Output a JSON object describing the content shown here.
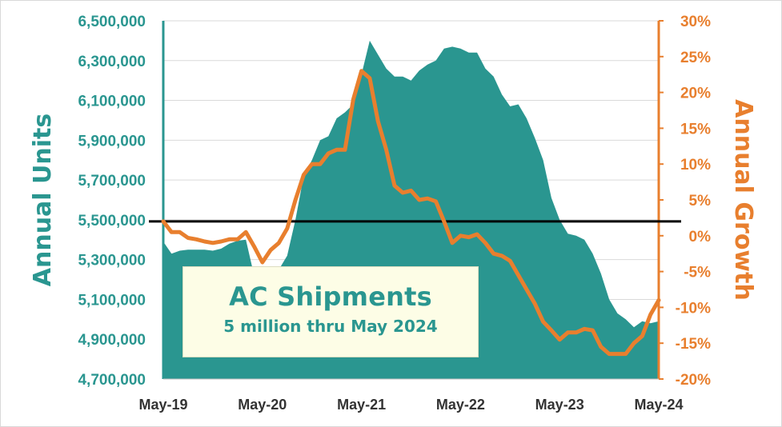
{
  "chart_data": {
    "type": "area",
    "title": "AC Shipments",
    "subtitle": "5 million thru May 2024",
    "ylabel": "Annual Units",
    "y2label": "Annual Growth",
    "ylim": [
      4700000,
      6500000
    ],
    "y2lim": [
      -20,
      30
    ],
    "yticks": [
      "6,500,000",
      "6,300,000",
      "6,100,000",
      "5,900,000",
      "5,700,000",
      "5,500,000",
      "5,300,000",
      "5,100,000",
      "4,900,000",
      "4,700,000"
    ],
    "y2ticks": [
      "30%",
      "25%",
      "20%",
      "15%",
      "10%",
      "5%",
      "0%",
      "-5%",
      "-10%",
      "-15%",
      "-20%"
    ],
    "xticks": [
      "May-19",
      "May-20",
      "May-21",
      "May-22",
      "May-23",
      "May-24"
    ],
    "reference_line_growth_pct": 2,
    "months": [
      "May-19",
      "Jun-19",
      "Jul-19",
      "Aug-19",
      "Sep-19",
      "Oct-19",
      "Nov-19",
      "Dec-19",
      "Jan-20",
      "Feb-20",
      "Mar-20",
      "Apr-20",
      "May-20",
      "Jun-20",
      "Jul-20",
      "Aug-20",
      "Sep-20",
      "Oct-20",
      "Nov-20",
      "Dec-20",
      "Jan-21",
      "Feb-21",
      "Mar-21",
      "Apr-21",
      "May-21",
      "Jun-21",
      "Jul-21",
      "Aug-21",
      "Sep-21",
      "Oct-21",
      "Nov-21",
      "Dec-21",
      "Jan-22",
      "Feb-22",
      "Mar-22",
      "Apr-22",
      "May-22",
      "Jun-22",
      "Jul-22",
      "Aug-22",
      "Sep-22",
      "Oct-22",
      "Nov-22",
      "Dec-22",
      "Jan-23",
      "Feb-23",
      "Mar-23",
      "Apr-23",
      "May-23",
      "Jun-23",
      "Jul-23",
      "Aug-23",
      "Sep-23",
      "Oct-23",
      "Nov-23",
      "Dec-23",
      "Jan-24",
      "Feb-24",
      "Mar-24",
      "Apr-24",
      "May-24"
    ],
    "series": [
      {
        "name": "Annual Units",
        "kind": "area",
        "color": "#2a9690",
        "values": [
          5390000,
          5330000,
          5345000,
          5350000,
          5350000,
          5350000,
          5345000,
          5355000,
          5380000,
          5395000,
          5400000,
          5220000,
          5150000,
          5200000,
          5250000,
          5320000,
          5500000,
          5720000,
          5800000,
          5900000,
          5920000,
          6010000,
          6040000,
          6080000,
          6230000,
          6400000,
          6330000,
          6260000,
          6220000,
          6220000,
          6200000,
          6250000,
          6280000,
          6300000,
          6360000,
          6370000,
          6360000,
          6340000,
          6340000,
          6260000,
          6220000,
          6130000,
          6070000,
          6080000,
          6010000,
          5910000,
          5800000,
          5610000,
          5500000,
          5430000,
          5420000,
          5400000,
          5330000,
          5230000,
          5100000,
          5030000,
          5000000,
          4960000,
          4990000,
          4980000,
          4990000
        ]
      },
      {
        "name": "Annual Growth",
        "kind": "line",
        "color": "#e87f2e",
        "values": [
          2,
          0.5,
          0.5,
          -0.3,
          -0.5,
          -0.8,
          -1,
          -0.8,
          -0.5,
          -0.5,
          0.5,
          -1.5,
          -3.7,
          -2,
          -1,
          1,
          5,
          8.5,
          10,
          10,
          11.5,
          12,
          12,
          19,
          23,
          22,
          16,
          12,
          7,
          6,
          6.3,
          5,
          5.2,
          4.8,
          2,
          -1,
          0,
          -0.2,
          0.2,
          -1,
          -2.5,
          -2.8,
          -3.5,
          -5.5,
          -7.5,
          -9.5,
          -12,
          -13.2,
          -14.5,
          -13.5,
          -13.5,
          -13,
          -13.2,
          -15.5,
          -16.5,
          -16.5,
          -16.5,
          -15,
          -14,
          -11,
          -9
        ]
      }
    ]
  }
}
